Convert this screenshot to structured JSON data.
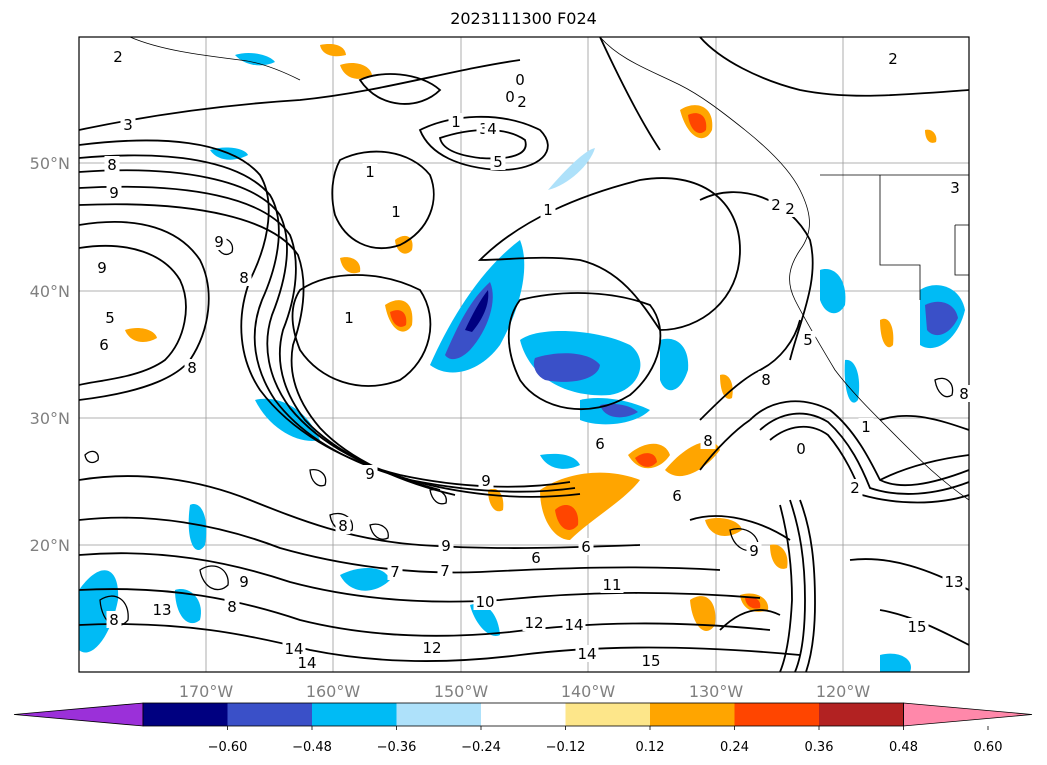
{
  "title": "2023111300 F024",
  "map": {
    "lat_labels": [
      "50°N",
      "40°N",
      "30°N",
      "20°N"
    ],
    "lon_labels": [
      "170°W",
      "160°W",
      "150°W",
      "140°W",
      "130°W",
      "120°W"
    ],
    "gridlines": true
  },
  "colorbar": {
    "colors": [
      "#9b30d9",
      "#000080",
      "#3a50c8",
      "#00bbf5",
      "#aee1fa",
      "#ffffff",
      "#fde68a",
      "#ffa500",
      "#ff4500",
      "#b22222",
      "#ff88aa"
    ],
    "tick_labels": [
      "−0.60",
      "−0.48",
      "−0.36",
      "−0.24",
      "−0.12",
      "0.12",
      "0.24",
      "0.36",
      "0.48",
      "0.60"
    ]
  },
  "contour_labels": [
    "2",
    "2",
    "3",
    "8",
    "9",
    "9",
    "8",
    "5",
    "6",
    "8",
    "1",
    "1",
    "1",
    "1",
    "0",
    "0",
    "3",
    "4",
    "5",
    "1",
    "2",
    "1",
    "2",
    "3",
    "5",
    "8",
    "9",
    "9",
    "2",
    "6",
    "6",
    "8",
    "8",
    "9",
    "9",
    "6",
    "6",
    "7",
    "7",
    "8",
    "9",
    "8",
    "13",
    "11",
    "10",
    "12",
    "12",
    "13",
    "14",
    "14",
    "14",
    "14",
    "15",
    "15",
    "0",
    "1",
    "2",
    "9",
    "8"
  ]
}
